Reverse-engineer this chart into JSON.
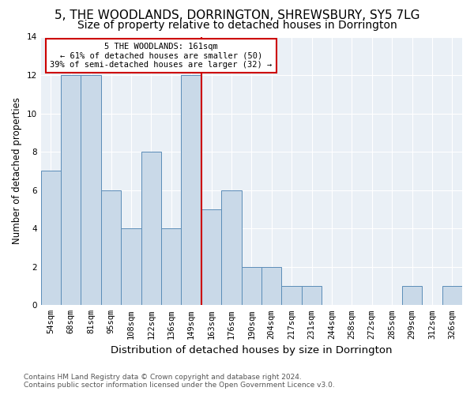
{
  "title": "5, THE WOODLANDS, DORRINGTON, SHREWSBURY, SY5 7LG",
  "subtitle": "Size of property relative to detached houses in Dorrington",
  "xlabel": "Distribution of detached houses by size in Dorrington",
  "ylabel": "Number of detached properties",
  "bins": [
    "54sqm",
    "68sqm",
    "81sqm",
    "95sqm",
    "108sqm",
    "122sqm",
    "136sqm",
    "149sqm",
    "163sqm",
    "176sqm",
    "190sqm",
    "204sqm",
    "217sqm",
    "231sqm",
    "244sqm",
    "258sqm",
    "272sqm",
    "285sqm",
    "299sqm",
    "312sqm",
    "326sqm"
  ],
  "values": [
    7,
    12,
    12,
    6,
    4,
    8,
    4,
    12,
    5,
    6,
    2,
    2,
    1,
    1,
    0,
    0,
    0,
    0,
    1,
    0,
    1
  ],
  "bar_color": "#c9d9e8",
  "bar_edge_color": "#5b8db8",
  "ref_line_index": 8,
  "annotation_text": "5 THE WOODLANDS: 161sqm\n← 61% of detached houses are smaller (50)\n39% of semi-detached houses are larger (32) →",
  "annotation_box_color": "#ffffff",
  "annotation_box_edge": "#cc0000",
  "ref_line_color": "#cc0000",
  "ylim": [
    0,
    14
  ],
  "yticks": [
    0,
    2,
    4,
    6,
    8,
    10,
    12,
    14
  ],
  "footer_line1": "Contains HM Land Registry data © Crown copyright and database right 2024.",
  "footer_line2": "Contains public sector information licensed under the Open Government Licence v3.0.",
  "bg_color": "#eaf0f6",
  "title_fontsize": 11,
  "subtitle_fontsize": 10,
  "xlabel_fontsize": 9.5,
  "ylabel_fontsize": 8.5,
  "tick_fontsize": 7.5,
  "footer_fontsize": 6.5,
  "annotation_fontsize": 7.5
}
